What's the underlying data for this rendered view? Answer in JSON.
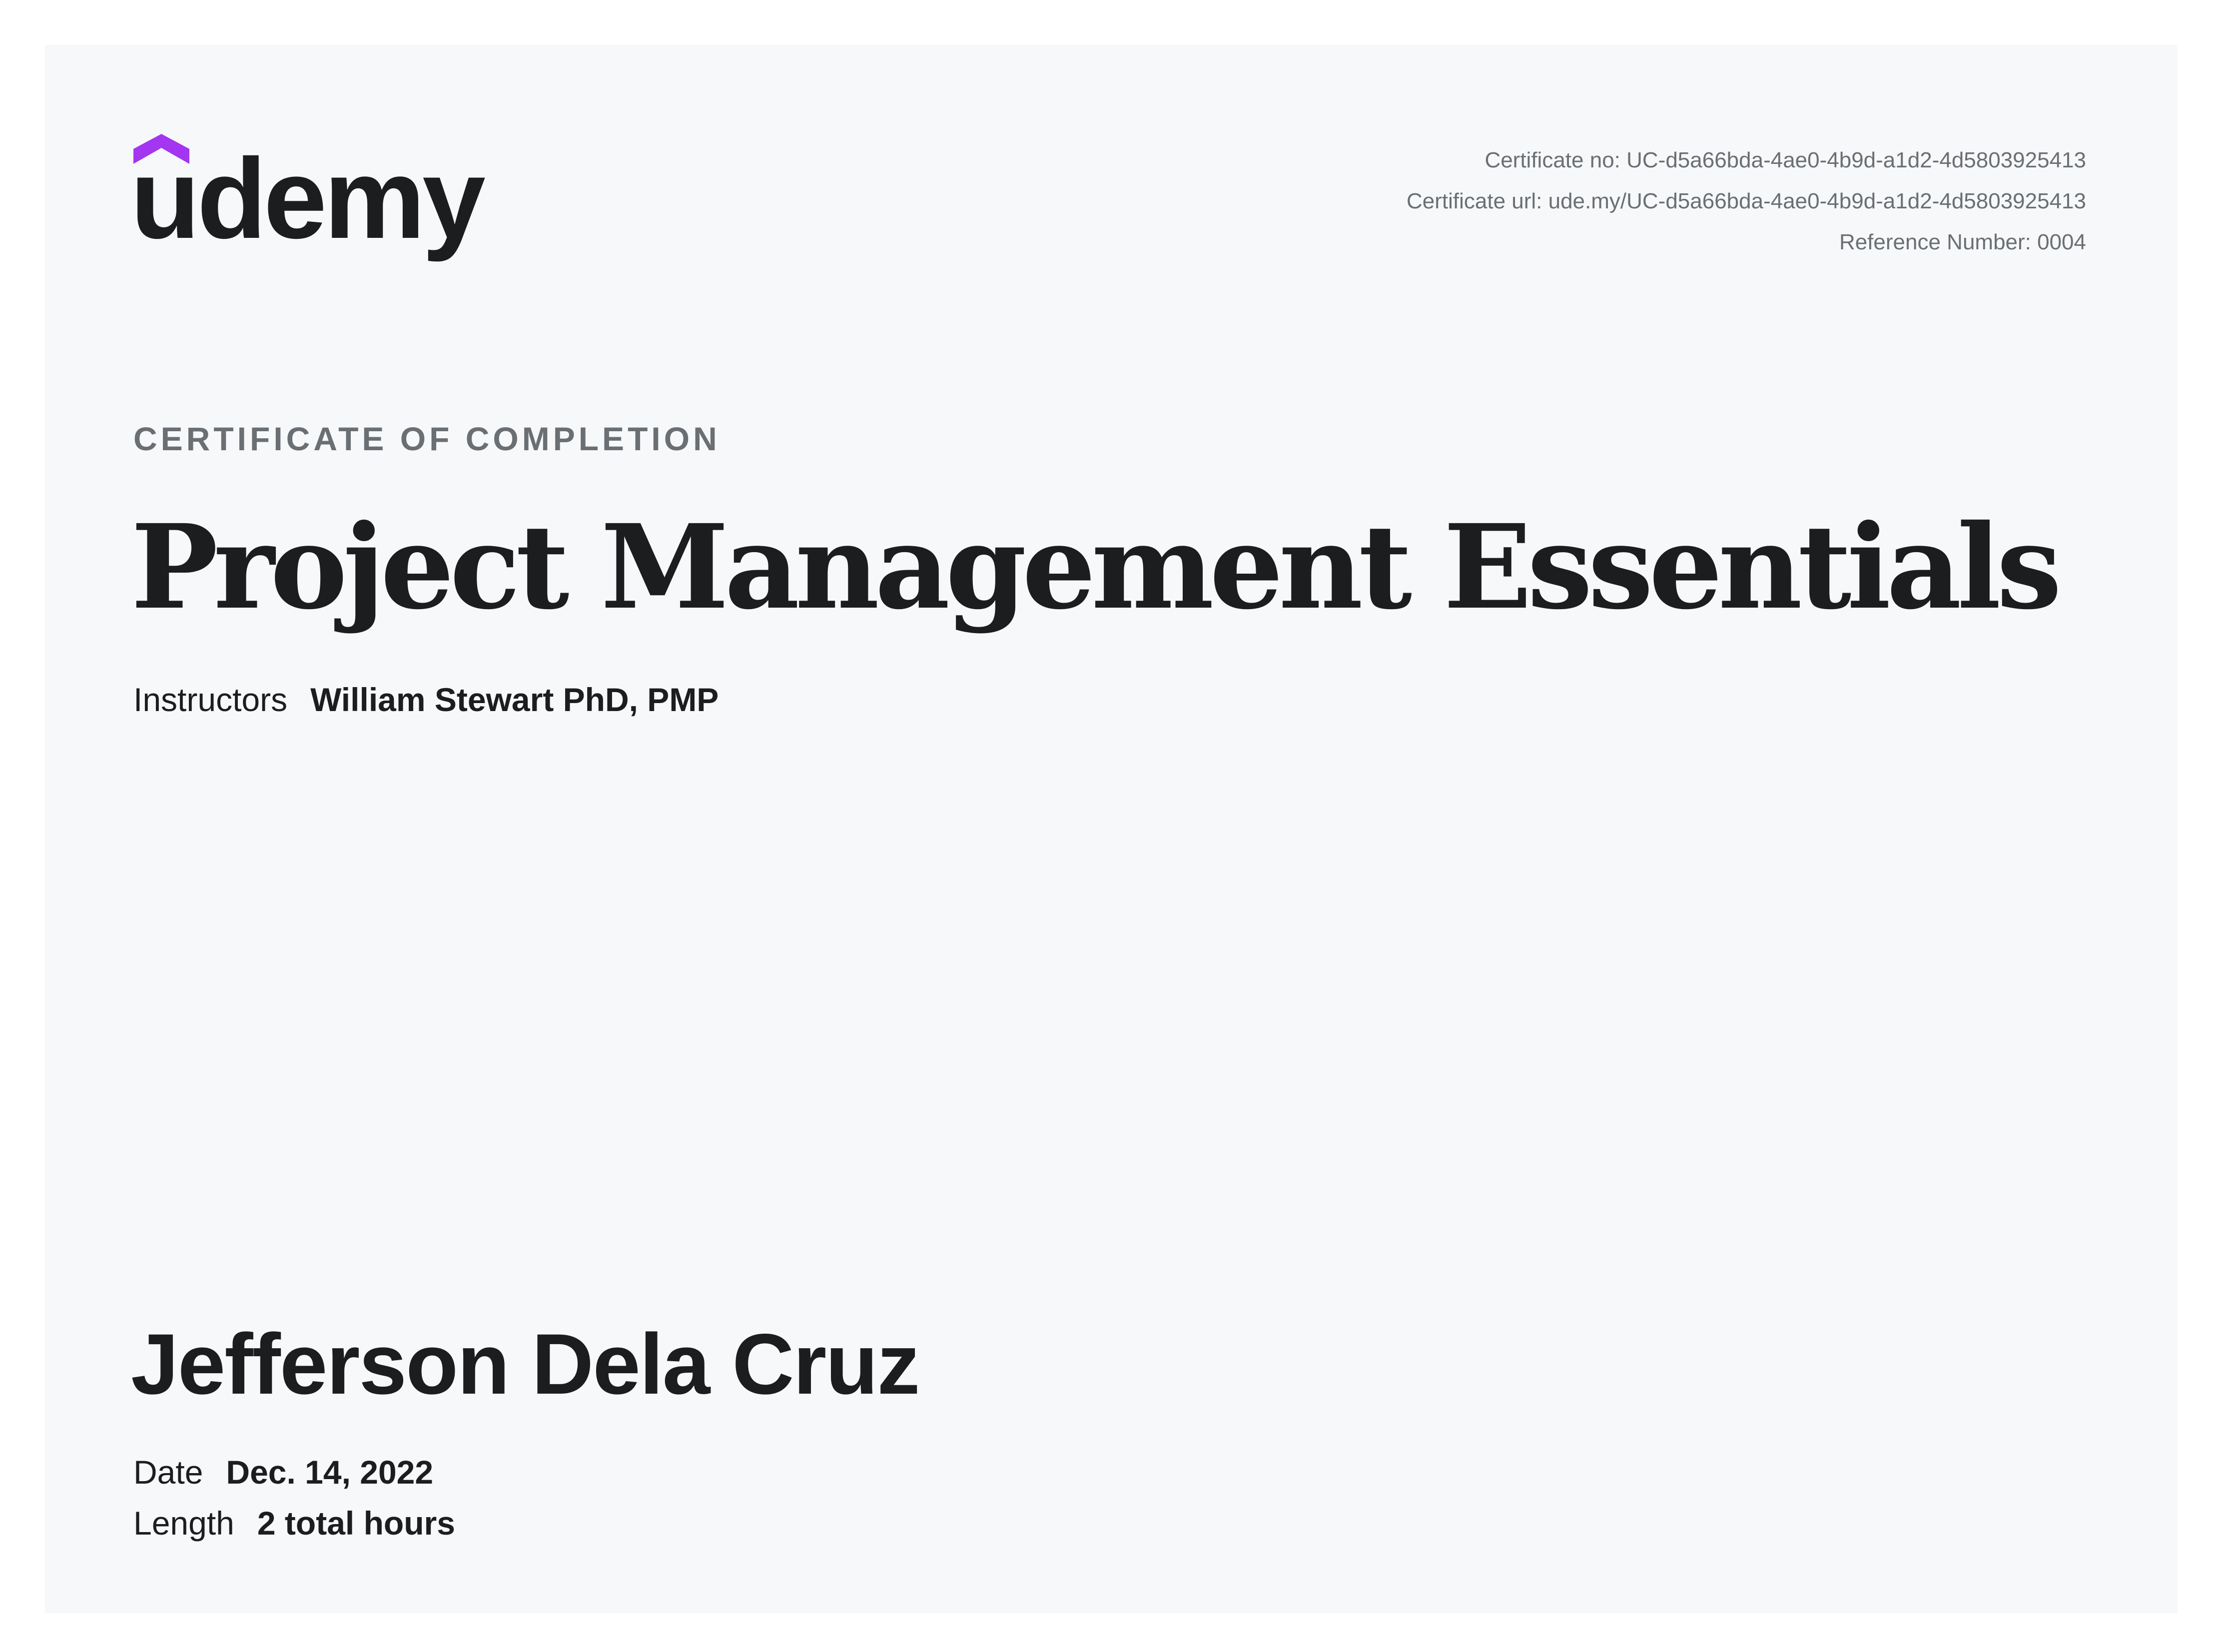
{
  "brand": {
    "logo_text": "udemy",
    "colors": {
      "accent": "#a435f0",
      "text": "#1c1d1f",
      "muted": "#6a6f73",
      "background": "#f7f8fa"
    }
  },
  "meta": {
    "certificate_no": "Certificate no: UC-d5a66bda-4ae0-4b9d-a1d2-4d5803925413",
    "certificate_url": "Certificate url: ude.my/UC-d5a66bda-4ae0-4b9d-a1d2-4d5803925413",
    "reference_number": "Reference Number: 0004"
  },
  "eyebrow": "CERTIFICATE OF COMPLETION",
  "course_title": "Project Management Essentials",
  "instructors": {
    "label": "Instructors",
    "value": "William Stewart PhD, PMP"
  },
  "recipient": "Jefferson Dela Cruz",
  "details": {
    "date": {
      "label": "Date",
      "value": "Dec. 14, 2022"
    },
    "length": {
      "label": "Length",
      "value": "2 total hours"
    }
  }
}
